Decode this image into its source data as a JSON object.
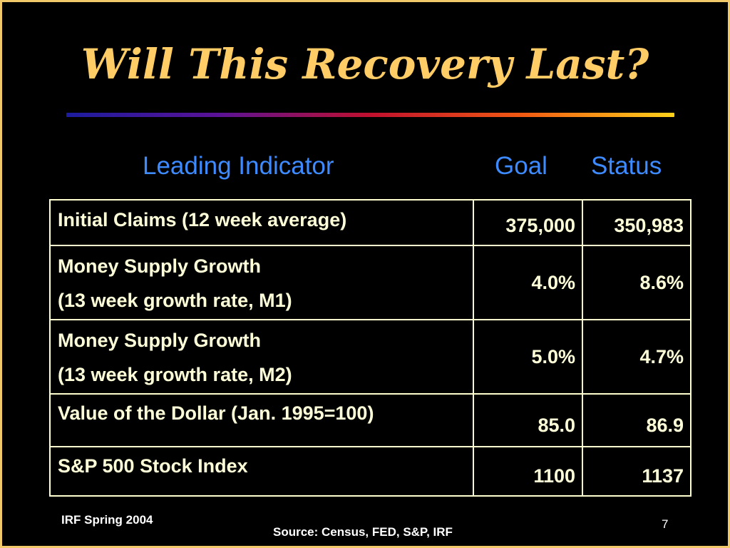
{
  "slide": {
    "title": "Will This Recovery Last?",
    "accent_color": "#FFCC66",
    "header_color": "#3D8BFF",
    "columns": {
      "indicator": "Leading Indicator",
      "goal": "Goal",
      "status": "Status"
    },
    "rows": [
      {
        "lines": [
          "Initial Claims (12 week average)"
        ],
        "goal": "375,000",
        "status": "350,983"
      },
      {
        "lines": [
          "Money Supply Growth",
          "(13 week growth rate, M1)"
        ],
        "goal": "4.0%",
        "status": "8.6%"
      },
      {
        "lines": [
          "Money Supply Growth",
          "(13 week growth rate, M2)"
        ],
        "goal": "5.0%",
        "status": "4.7%"
      },
      {
        "lines": [
          "Value of the Dollar (Jan. 1995=100)"
        ],
        "goal": "85.0",
        "status": "86.9"
      },
      {
        "lines": [
          "S&P 500 Stock Index"
        ],
        "goal": "1100",
        "status": "1137"
      }
    ],
    "footer": {
      "left": "IRF Spring 2004",
      "source": "Source: Census, FED, S&P, IRF",
      "page_number": "7"
    }
  }
}
